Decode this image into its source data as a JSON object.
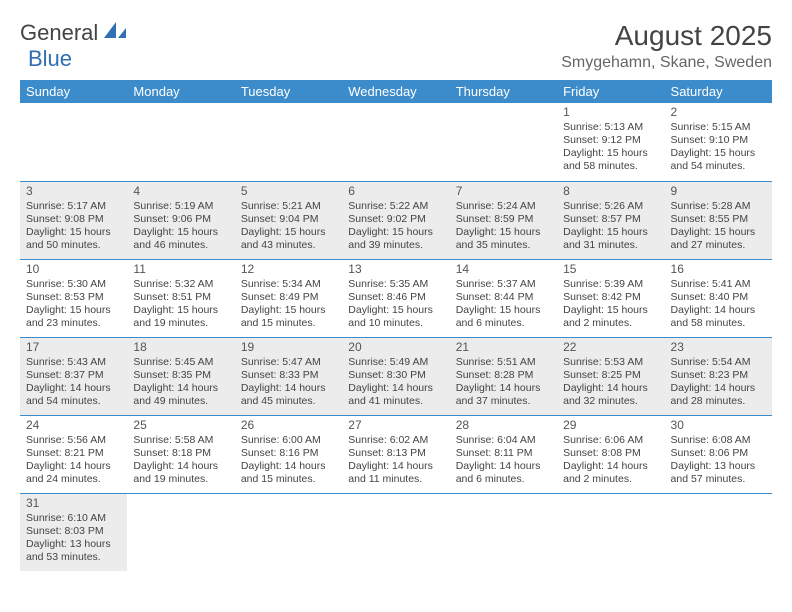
{
  "brand": {
    "part1": "General",
    "part2": "Blue"
  },
  "title": "August 2025",
  "location": "Smygehamn, Skane, Sweden",
  "colors": {
    "header_bg": "#3c8ccc",
    "header_text": "#ffffff",
    "row_alt_bg": "#ececec",
    "text": "#444444",
    "brand_blue": "#2f6fb2"
  },
  "weekdays": [
    "Sunday",
    "Monday",
    "Tuesday",
    "Wednesday",
    "Thursday",
    "Friday",
    "Saturday"
  ],
  "weeks": [
    [
      {
        "empty": true
      },
      {
        "empty": true
      },
      {
        "empty": true
      },
      {
        "empty": true
      },
      {
        "empty": true
      },
      {
        "day": "1",
        "sunrise": "Sunrise: 5:13 AM",
        "sunset": "Sunset: 9:12 PM",
        "daylight": "Daylight: 15 hours and 58 minutes."
      },
      {
        "day": "2",
        "sunrise": "Sunrise: 5:15 AM",
        "sunset": "Sunset: 9:10 PM",
        "daylight": "Daylight: 15 hours and 54 minutes."
      }
    ],
    [
      {
        "day": "3",
        "sunrise": "Sunrise: 5:17 AM",
        "sunset": "Sunset: 9:08 PM",
        "daylight": "Daylight: 15 hours and 50 minutes."
      },
      {
        "day": "4",
        "sunrise": "Sunrise: 5:19 AM",
        "sunset": "Sunset: 9:06 PM",
        "daylight": "Daylight: 15 hours and 46 minutes."
      },
      {
        "day": "5",
        "sunrise": "Sunrise: 5:21 AM",
        "sunset": "Sunset: 9:04 PM",
        "daylight": "Daylight: 15 hours and 43 minutes."
      },
      {
        "day": "6",
        "sunrise": "Sunrise: 5:22 AM",
        "sunset": "Sunset: 9:02 PM",
        "daylight": "Daylight: 15 hours and 39 minutes."
      },
      {
        "day": "7",
        "sunrise": "Sunrise: 5:24 AM",
        "sunset": "Sunset: 8:59 PM",
        "daylight": "Daylight: 15 hours and 35 minutes."
      },
      {
        "day": "8",
        "sunrise": "Sunrise: 5:26 AM",
        "sunset": "Sunset: 8:57 PM",
        "daylight": "Daylight: 15 hours and 31 minutes."
      },
      {
        "day": "9",
        "sunrise": "Sunrise: 5:28 AM",
        "sunset": "Sunset: 8:55 PM",
        "daylight": "Daylight: 15 hours and 27 minutes."
      }
    ],
    [
      {
        "day": "10",
        "sunrise": "Sunrise: 5:30 AM",
        "sunset": "Sunset: 8:53 PM",
        "daylight": "Daylight: 15 hours and 23 minutes."
      },
      {
        "day": "11",
        "sunrise": "Sunrise: 5:32 AM",
        "sunset": "Sunset: 8:51 PM",
        "daylight": "Daylight: 15 hours and 19 minutes."
      },
      {
        "day": "12",
        "sunrise": "Sunrise: 5:34 AM",
        "sunset": "Sunset: 8:49 PM",
        "daylight": "Daylight: 15 hours and 15 minutes."
      },
      {
        "day": "13",
        "sunrise": "Sunrise: 5:35 AM",
        "sunset": "Sunset: 8:46 PM",
        "daylight": "Daylight: 15 hours and 10 minutes."
      },
      {
        "day": "14",
        "sunrise": "Sunrise: 5:37 AM",
        "sunset": "Sunset: 8:44 PM",
        "daylight": "Daylight: 15 hours and 6 minutes."
      },
      {
        "day": "15",
        "sunrise": "Sunrise: 5:39 AM",
        "sunset": "Sunset: 8:42 PM",
        "daylight": "Daylight: 15 hours and 2 minutes."
      },
      {
        "day": "16",
        "sunrise": "Sunrise: 5:41 AM",
        "sunset": "Sunset: 8:40 PM",
        "daylight": "Daylight: 14 hours and 58 minutes."
      }
    ],
    [
      {
        "day": "17",
        "sunrise": "Sunrise: 5:43 AM",
        "sunset": "Sunset: 8:37 PM",
        "daylight": "Daylight: 14 hours and 54 minutes."
      },
      {
        "day": "18",
        "sunrise": "Sunrise: 5:45 AM",
        "sunset": "Sunset: 8:35 PM",
        "daylight": "Daylight: 14 hours and 49 minutes."
      },
      {
        "day": "19",
        "sunrise": "Sunrise: 5:47 AM",
        "sunset": "Sunset: 8:33 PM",
        "daylight": "Daylight: 14 hours and 45 minutes."
      },
      {
        "day": "20",
        "sunrise": "Sunrise: 5:49 AM",
        "sunset": "Sunset: 8:30 PM",
        "daylight": "Daylight: 14 hours and 41 minutes."
      },
      {
        "day": "21",
        "sunrise": "Sunrise: 5:51 AM",
        "sunset": "Sunset: 8:28 PM",
        "daylight": "Daylight: 14 hours and 37 minutes."
      },
      {
        "day": "22",
        "sunrise": "Sunrise: 5:53 AM",
        "sunset": "Sunset: 8:25 PM",
        "daylight": "Daylight: 14 hours and 32 minutes."
      },
      {
        "day": "23",
        "sunrise": "Sunrise: 5:54 AM",
        "sunset": "Sunset: 8:23 PM",
        "daylight": "Daylight: 14 hours and 28 minutes."
      }
    ],
    [
      {
        "day": "24",
        "sunrise": "Sunrise: 5:56 AM",
        "sunset": "Sunset: 8:21 PM",
        "daylight": "Daylight: 14 hours and 24 minutes."
      },
      {
        "day": "25",
        "sunrise": "Sunrise: 5:58 AM",
        "sunset": "Sunset: 8:18 PM",
        "daylight": "Daylight: 14 hours and 19 minutes."
      },
      {
        "day": "26",
        "sunrise": "Sunrise: 6:00 AM",
        "sunset": "Sunset: 8:16 PM",
        "daylight": "Daylight: 14 hours and 15 minutes."
      },
      {
        "day": "27",
        "sunrise": "Sunrise: 6:02 AM",
        "sunset": "Sunset: 8:13 PM",
        "daylight": "Daylight: 14 hours and 11 minutes."
      },
      {
        "day": "28",
        "sunrise": "Sunrise: 6:04 AM",
        "sunset": "Sunset: 8:11 PM",
        "daylight": "Daylight: 14 hours and 6 minutes."
      },
      {
        "day": "29",
        "sunrise": "Sunrise: 6:06 AM",
        "sunset": "Sunset: 8:08 PM",
        "daylight": "Daylight: 14 hours and 2 minutes."
      },
      {
        "day": "30",
        "sunrise": "Sunrise: 6:08 AM",
        "sunset": "Sunset: 8:06 PM",
        "daylight": "Daylight: 13 hours and 57 minutes."
      }
    ],
    [
      {
        "day": "31",
        "sunrise": "Sunrise: 6:10 AM",
        "sunset": "Sunset: 8:03 PM",
        "daylight": "Daylight: 13 hours and 53 minutes."
      },
      {
        "empty": true
      },
      {
        "empty": true
      },
      {
        "empty": true
      },
      {
        "empty": true
      },
      {
        "empty": true
      },
      {
        "empty": true
      }
    ]
  ]
}
